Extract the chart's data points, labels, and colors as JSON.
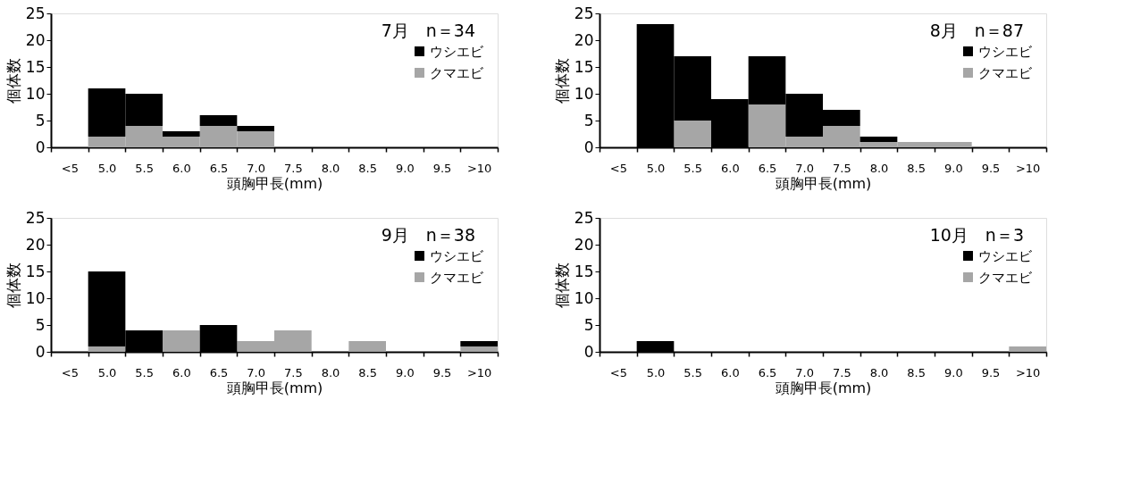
{
  "chart_data": [
    {
      "type": "bar",
      "stacked": true,
      "annotations": [
        "7月　n＝34"
      ],
      "xlabel": "頭胸甲長(mm)",
      "ylabel": "個体数",
      "categories": [
        "<5",
        "5.0",
        "5.5",
        "6.0",
        "6.5",
        "7.0",
        "7.5",
        "8.0",
        "8.5",
        "9.0",
        "9.5",
        ">10"
      ],
      "ylim": [
        0,
        25
      ],
      "yticks": [
        0,
        5,
        10,
        15,
        20,
        25
      ],
      "grid": false,
      "legend": "top right",
      "series": [
        {
          "name": "クマエビ",
          "color": "#a6a6a6",
          "values": [
            0,
            2,
            4,
            2,
            4,
            3,
            0,
            0,
            0,
            0,
            0,
            0
          ]
        },
        {
          "name": "ウシエビ",
          "color": "#000000",
          "values": [
            0,
            9,
            6,
            1,
            2,
            1,
            0,
            0,
            0,
            0,
            0,
            0
          ]
        }
      ]
    },
    {
      "type": "bar",
      "stacked": true,
      "annotations": [
        "8月　n＝87"
      ],
      "xlabel": "頭胸甲長(mm)",
      "ylabel": "個体数",
      "categories": [
        "<5",
        "5.0",
        "5.5",
        "6.0",
        "6.5",
        "7.0",
        "7.5",
        "8.0",
        "8.5",
        "9.0",
        "9.5",
        ">10"
      ],
      "ylim": [
        0,
        25
      ],
      "yticks": [
        0,
        5,
        10,
        15,
        20,
        25
      ],
      "grid": false,
      "legend": "top right",
      "series": [
        {
          "name": "クマエビ",
          "color": "#a6a6a6",
          "values": [
            0,
            0,
            5,
            0,
            8,
            2,
            4,
            1,
            1,
            1,
            0,
            0
          ]
        },
        {
          "name": "ウシエビ",
          "color": "#000000",
          "values": [
            0,
            23,
            12,
            9,
            9,
            8,
            3,
            1,
            0,
            0,
            0,
            0
          ]
        }
      ]
    },
    {
      "type": "bar",
      "stacked": true,
      "annotations": [
        "9月　n＝38"
      ],
      "xlabel": "頭胸甲長(mm)",
      "ylabel": "個体数",
      "categories": [
        "<5",
        "5.0",
        "5.5",
        "6.0",
        "6.5",
        "7.0",
        "7.5",
        "8.0",
        "8.5",
        "9.0",
        "9.5",
        ">10"
      ],
      "ylim": [
        0,
        25
      ],
      "yticks": [
        0,
        5,
        10,
        15,
        20,
        25
      ],
      "grid": false,
      "legend": "top right",
      "series": [
        {
          "name": "クマエビ",
          "color": "#a6a6a6",
          "values": [
            0,
            1,
            0,
            4,
            0,
            2,
            4,
            0,
            2,
            0,
            0,
            1
          ]
        },
        {
          "name": "ウシエビ",
          "color": "#000000",
          "values": [
            0,
            14,
            4,
            0,
            5,
            0,
            0,
            0,
            0,
            0,
            0,
            1
          ]
        }
      ]
    },
    {
      "type": "bar",
      "stacked": true,
      "annotations": [
        "10月　n＝3"
      ],
      "xlabel": "頭胸甲長(mm)",
      "ylabel": "個体数",
      "categories": [
        "<5",
        "5.0",
        "5.5",
        "6.0",
        "6.5",
        "7.0",
        "7.5",
        "8.0",
        "8.5",
        "9.0",
        "9.5",
        ">10"
      ],
      "ylim": [
        0,
        25
      ],
      "yticks": [
        0,
        5,
        10,
        15,
        20,
        25
      ],
      "grid": false,
      "legend": "top right",
      "series": [
        {
          "name": "クマエビ",
          "color": "#a6a6a6",
          "values": [
            0,
            0,
            0,
            0,
            0,
            0,
            0,
            0,
            0,
            0,
            0,
            1
          ]
        },
        {
          "name": "ウシエビ",
          "color": "#000000",
          "values": [
            0,
            2,
            0,
            0,
            0,
            0,
            0,
            0,
            0,
            0,
            0,
            0
          ]
        }
      ]
    }
  ]
}
